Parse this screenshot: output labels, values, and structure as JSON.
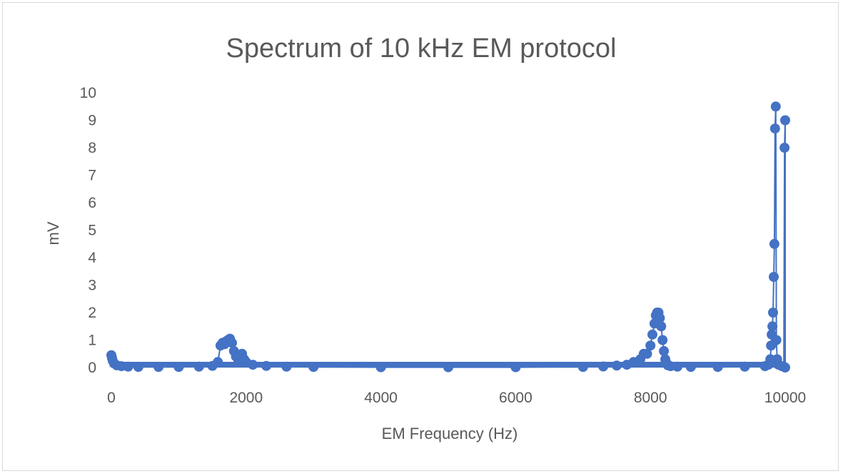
{
  "chart_data": {
    "type": "scatter",
    "title": "Spectrum of 10 kHz EM protocol",
    "xlabel": "EM Frequency (Hz)",
    "ylabel": "mV",
    "xlim": [
      0,
      10000
    ],
    "ylim": [
      0,
      10
    ],
    "x_ticks": [
      "0",
      "2000",
      "4000",
      "6000",
      "8000",
      "10000"
    ],
    "y_ticks": [
      "0",
      "1",
      "2",
      "3",
      "4",
      "5",
      "6",
      "7",
      "8",
      "9",
      "10"
    ],
    "grid": false,
    "legend": "none",
    "series_color": "#4472C4",
    "style": "markers with straight lines",
    "series": [
      {
        "x": [
          0,
          10,
          20,
          40,
          80,
          150,
          250,
          400,
          700,
          1000,
          1300,
          1500,
          1580,
          1620,
          1650,
          1680,
          1700,
          1730,
          1760,
          1790,
          1820,
          1850,
          1880,
          1910,
          1940,
          1970,
          2000,
          2100,
          2300,
          2600,
          3000,
          4000,
          5000,
          6000,
          7000,
          7300,
          7500,
          7650,
          7750,
          7850,
          7900,
          7950,
          8000,
          8030,
          8060,
          8080,
          8100,
          8120,
          8140,
          8160,
          8180,
          8200,
          8220,
          8240,
          8260,
          8300,
          8400,
          8600,
          9000,
          9400,
          9700,
          9750,
          9780,
          9790,
          9800,
          9810,
          9820,
          9830,
          9840,
          9850,
          9860,
          9870,
          9880,
          9900,
          9950,
          9980,
          9990,
          10000,
          10000
        ],
        "y": [
          0.45,
          0.35,
          0.25,
          0.15,
          0.08,
          0.05,
          0.03,
          0.02,
          0.02,
          0.02,
          0.03,
          0.06,
          0.2,
          0.8,
          0.9,
          0.85,
          0.95,
          1.0,
          1.05,
          0.9,
          0.6,
          0.4,
          0.3,
          0.35,
          0.5,
          0.3,
          0.2,
          0.1,
          0.06,
          0.03,
          0.02,
          0.01,
          0.01,
          0.01,
          0.02,
          0.04,
          0.07,
          0.1,
          0.2,
          0.3,
          0.5,
          0.5,
          0.8,
          1.2,
          1.6,
          1.9,
          2.0,
          2.0,
          1.8,
          1.5,
          1.0,
          0.6,
          0.3,
          0.15,
          0.08,
          0.05,
          0.03,
          0.02,
          0.02,
          0.03,
          0.05,
          0.1,
          0.3,
          0.8,
          1.2,
          1.5,
          2.0,
          3.3,
          4.5,
          8.7,
          9.5,
          1.0,
          0.3,
          0.1,
          0.05,
          0.03,
          8.0,
          9.0,
          0.0
        ]
      }
    ]
  }
}
